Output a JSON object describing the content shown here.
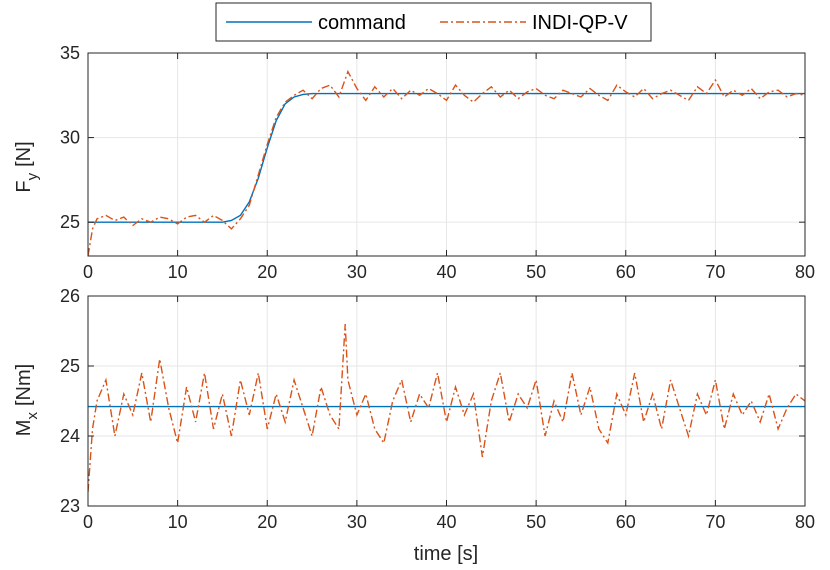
{
  "legend": {
    "entries": [
      {
        "label": "command",
        "color": "#0072BD",
        "style": "solid"
      },
      {
        "label": "INDI-QP-V",
        "color": "#D95319",
        "style": "dash-dot"
      }
    ]
  },
  "chart_data": [
    {
      "type": "line",
      "ylabel": "F",
      "ylabel_sub": "y",
      "ylabel_unit": "[N]",
      "xlabel": "",
      "xlim": [
        0,
        80
      ],
      "ylim": [
        23,
        35
      ],
      "grid": true,
      "x_ticks": [
        0,
        10,
        20,
        30,
        40,
        50,
        60,
        70,
        80
      ],
      "y_ticks": [
        25,
        30,
        35
      ],
      "series": [
        {
          "name": "command",
          "color": "#0072BD",
          "style": "solid",
          "x": [
            0,
            15,
            16,
            17,
            18,
            19,
            20,
            21,
            22,
            23,
            24,
            25,
            26,
            80
          ],
          "y": [
            25,
            25,
            25.1,
            25.4,
            26.2,
            27.6,
            29.4,
            31.0,
            32.0,
            32.4,
            32.55,
            32.6,
            32.6,
            32.6
          ]
        },
        {
          "name": "INDI-QP-V",
          "color": "#D95319",
          "style": "dash-dot",
          "x": [
            0,
            0.5,
            1,
            2,
            3,
            4,
            5,
            6,
            7,
            8,
            9,
            10,
            11,
            12,
            13,
            14,
            15,
            16,
            17,
            18,
            19,
            20,
            21,
            22,
            23,
            24,
            25,
            26,
            27,
            28,
            29,
            30,
            31,
            32,
            33,
            34,
            35,
            36,
            37,
            38,
            39,
            40,
            41,
            42,
            43,
            44,
            45,
            46,
            47,
            48,
            49,
            50,
            51,
            52,
            53,
            54,
            55,
            56,
            57,
            58,
            59,
            60,
            61,
            62,
            63,
            64,
            65,
            66,
            67,
            68,
            69,
            70,
            71,
            72,
            73,
            74,
            75,
            76,
            77,
            78,
            79,
            80
          ],
          "y": [
            23.0,
            24.6,
            25.2,
            25.4,
            25.1,
            25.3,
            24.8,
            25.2,
            25.0,
            25.3,
            25.2,
            24.9,
            25.3,
            25.4,
            25.0,
            25.4,
            25.1,
            24.6,
            25.2,
            26.0,
            27.8,
            29.6,
            31.2,
            32.1,
            32.5,
            32.8,
            32.3,
            32.9,
            33.1,
            32.4,
            33.9,
            32.9,
            32.2,
            33.0,
            32.4,
            32.9,
            32.3,
            32.8,
            32.5,
            32.9,
            32.6,
            32.2,
            33.1,
            32.5,
            32.1,
            32.6,
            33.0,
            32.4,
            32.8,
            32.3,
            32.7,
            32.9,
            32.5,
            32.3,
            32.8,
            32.6,
            32.4,
            32.9,
            32.5,
            32.2,
            33.1,
            32.7,
            32.4,
            32.9,
            32.3,
            32.6,
            32.8,
            32.5,
            32.2,
            33.0,
            32.6,
            33.4,
            32.4,
            32.8,
            32.5,
            32.9,
            32.3,
            32.7,
            32.8,
            32.4,
            32.6,
            32.5
          ]
        }
      ]
    },
    {
      "type": "line",
      "ylabel": "M",
      "ylabel_sub": "x",
      "ylabel_unit": "[Nm]",
      "xlabel": "time [s]",
      "xlim": [
        0,
        80
      ],
      "ylim": [
        23,
        26
      ],
      "grid": true,
      "x_ticks": [
        0,
        10,
        20,
        30,
        40,
        50,
        60,
        70,
        80
      ],
      "y_ticks": [
        23,
        24,
        25,
        26
      ],
      "series": [
        {
          "name": "command",
          "color": "#0072BD",
          "style": "solid",
          "x": [
            0,
            80
          ],
          "y": [
            24.42,
            24.42
          ]
        },
        {
          "name": "INDI-QP-V",
          "color": "#D95319",
          "style": "dash-dot",
          "x": [
            0,
            0.5,
            1,
            2,
            3,
            4,
            5,
            6,
            7,
            8,
            9,
            10,
            11,
            12,
            13,
            14,
            15,
            16,
            17,
            18,
            19,
            20,
            21,
            22,
            23,
            24,
            25,
            26,
            27,
            28,
            28.7,
            29,
            30,
            31,
            32,
            33,
            34,
            35,
            36,
            37,
            38,
            39,
            40,
            41,
            42,
            43,
            44,
            45,
            46,
            47,
            48,
            49,
            50,
            51,
            52,
            53,
            54,
            55,
            56,
            57,
            58,
            59,
            60,
            61,
            62,
            63,
            64,
            65,
            66,
            67,
            68,
            69,
            70,
            71,
            72,
            73,
            74,
            75,
            76,
            77,
            78,
            79,
            80
          ],
          "y": [
            23.2,
            24.1,
            24.5,
            24.8,
            24.0,
            24.6,
            24.3,
            24.9,
            24.2,
            25.1,
            24.4,
            23.9,
            24.7,
            24.2,
            24.9,
            24.1,
            24.6,
            24.0,
            24.8,
            24.3,
            24.9,
            24.1,
            24.6,
            24.2,
            24.8,
            24.4,
            24.0,
            24.7,
            24.3,
            24.1,
            25.6,
            24.8,
            24.3,
            24.6,
            24.1,
            23.9,
            24.5,
            24.8,
            24.2,
            24.6,
            24.4,
            24.9,
            24.2,
            24.7,
            24.3,
            24.6,
            23.7,
            24.5,
            24.9,
            24.2,
            24.6,
            24.4,
            24.8,
            24.0,
            24.5,
            24.2,
            24.9,
            24.3,
            24.7,
            24.1,
            23.9,
            24.6,
            24.3,
            24.9,
            24.2,
            24.6,
            24.1,
            24.8,
            24.4,
            24.0,
            24.6,
            24.3,
            24.8,
            24.1,
            24.6,
            24.3,
            24.5,
            24.2,
            24.6,
            24.1,
            24.4,
            24.6,
            24.5
          ]
        }
      ]
    }
  ]
}
